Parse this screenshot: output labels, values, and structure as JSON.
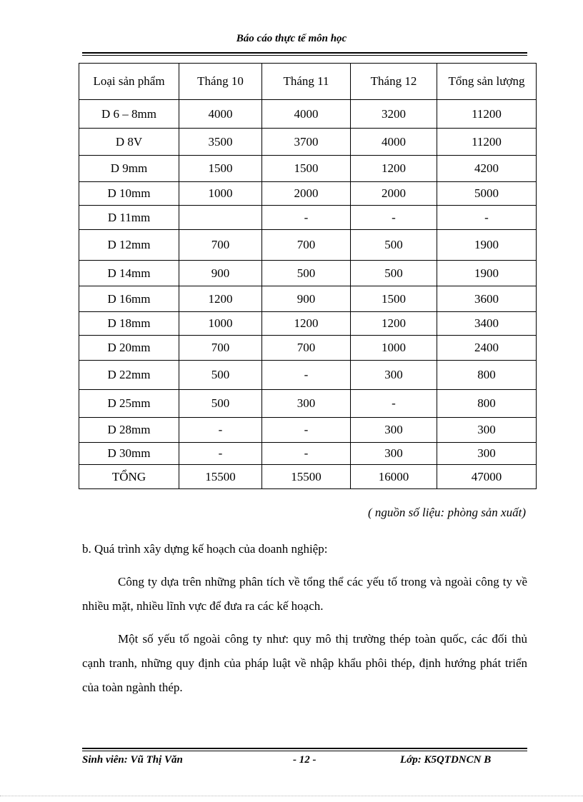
{
  "header": {
    "title": "Báo cáo thực tế môn học"
  },
  "table": {
    "columns": [
      "Loại sản phẩm",
      "Tháng 10",
      "Tháng 11",
      "Tháng 12",
      "Tổng sản lượng"
    ],
    "rows": [
      [
        "D 6 – 8mm",
        "4000",
        "4000",
        "3200",
        "11200"
      ],
      [
        "D 8V",
        "3500",
        "3700",
        "4000",
        "11200"
      ],
      [
        "D 9mm",
        "1500",
        "1500",
        "1200",
        "4200"
      ],
      [
        "D 10mm",
        "1000",
        "2000",
        "2000",
        "5000"
      ],
      [
        "D 11mm",
        "",
        "-",
        "-",
        "-"
      ],
      [
        "D 12mm",
        "700",
        "700",
        "500",
        "1900"
      ],
      [
        "D 14mm",
        "900",
        "500",
        "500",
        "1900"
      ],
      [
        "D 16mm",
        "1200",
        "900",
        "1500",
        "3600"
      ],
      [
        "D 18mm",
        "1000",
        "1200",
        "1200",
        "3400"
      ],
      [
        "D 20mm",
        "700",
        "700",
        "1000",
        "2400"
      ],
      [
        "D 22mm",
        "500",
        "-",
        "300",
        "800"
      ],
      [
        "D 25mm",
        "500",
        "300",
        "-",
        "800"
      ],
      [
        "D 28mm",
        "-",
        "-",
        "300",
        "300"
      ],
      [
        "D 30mm",
        "-",
        "-",
        "300",
        "300"
      ],
      [
        "TỔNG",
        "15500",
        "15500",
        "16000",
        "47000"
      ]
    ]
  },
  "source_note": "( nguồn số liệu: phòng sản xuất)",
  "section_heading": "b. Quá trình  xây dựng kế hoạch của doanh nghiệp:",
  "paragraphs": [
    "Công ty dựa trên những phân tích về tổng thể các yếu tố trong và ngoài công ty về nhiều mặt, nhiều lĩnh vực để đưa ra các kế hoạch.",
    "Một số yếu tố ngoài công ty như: quy mô thị trường thép toàn quốc, các đối thủ cạnh tranh, những quy định của pháp luật về nhập khẩu phôi thép, định hướng phát triển của toàn ngành thép."
  ],
  "footer": {
    "student": "Sinh viên: Vũ Thị Văn",
    "page": "- 12 -",
    "class": "Lớp: K5QTDNCN  B"
  }
}
